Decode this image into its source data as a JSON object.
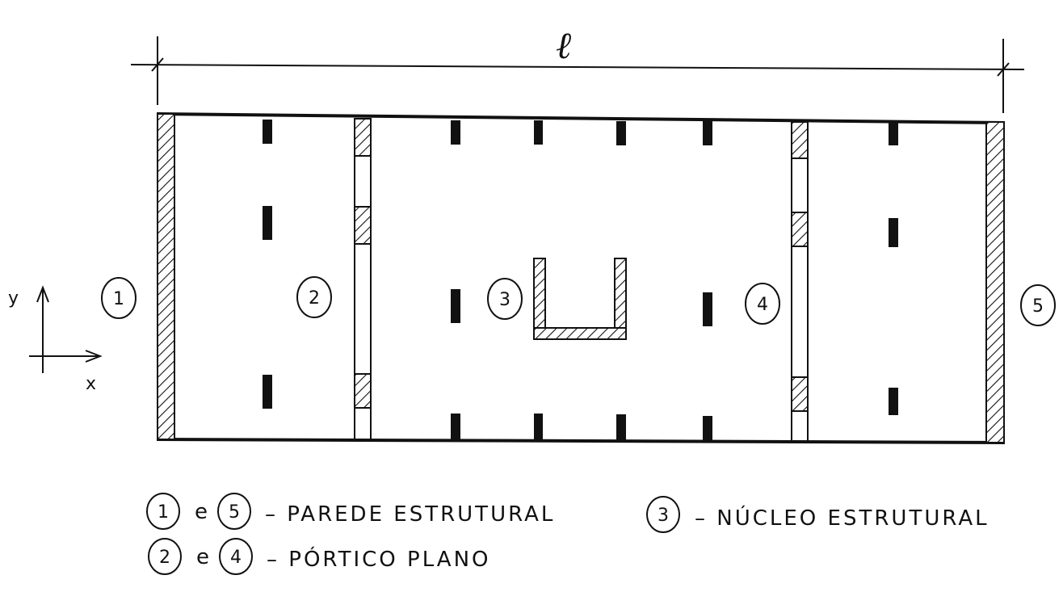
{
  "dimension": {
    "label": "ℓ"
  },
  "axes": {
    "y_label": "y",
    "x_label": "x"
  },
  "elements": [
    {
      "number": "1"
    },
    {
      "number": "2"
    },
    {
      "number": "3"
    },
    {
      "number": "4"
    },
    {
      "number": "5"
    }
  ],
  "legend": {
    "row1": {
      "a": "1",
      "conj": "e",
      "b": "5",
      "text": "– PAREDE ESTRUTURAL"
    },
    "row2": {
      "a": "2",
      "conj": "e",
      "b": "4",
      "text": "– PÓRTICO PLANO"
    },
    "row3": {
      "a": "3",
      "text": "– NÚCLEO ESTRUTURAL"
    }
  }
}
